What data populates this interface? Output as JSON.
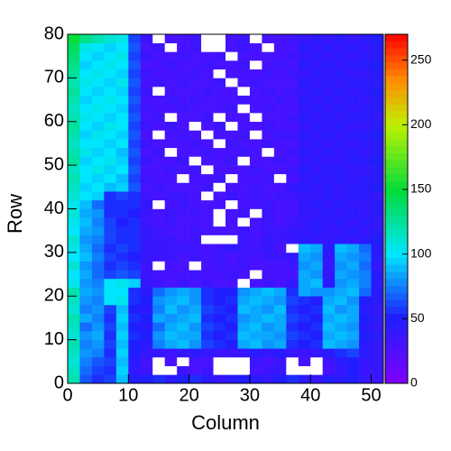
{
  "chart_data": {
    "type": "heatmap",
    "xlabel": "Column",
    "ylabel": "Row",
    "xlim": [
      0,
      52
    ],
    "ylim": [
      0,
      80
    ],
    "zlim": [
      0,
      270
    ],
    "xticks": [
      0,
      10,
      20,
      30,
      40,
      50
    ],
    "yticks": [
      0,
      10,
      20,
      30,
      40,
      50,
      60,
      70,
      80
    ],
    "zticks": [
      0,
      50,
      100,
      150,
      200,
      250
    ],
    "xbins": [
      0,
      2,
      4,
      6,
      8,
      10,
      12,
      14,
      16,
      18,
      20,
      22,
      24,
      26,
      28,
      30,
      32,
      34,
      36,
      38,
      40,
      42,
      44,
      46,
      48,
      50,
      52
    ],
    "ybins": [
      0,
      2,
      4,
      6,
      8,
      10,
      12,
      14,
      16,
      18,
      20,
      22,
      24,
      26,
      28,
      30,
      32,
      34,
      36,
      38,
      40,
      42,
      44,
      46,
      48,
      50,
      52,
      54,
      56,
      58,
      60,
      62,
      64,
      66,
      68,
      70,
      72,
      74,
      76,
      78,
      80
    ],
    "z": [
      [
        120,
        65,
        55,
        60,
        90,
        50,
        50,
        55,
        45,
        50,
        55,
        45,
        40,
        45,
        50,
        45,
        40,
        50,
        55,
        45,
        40,
        50,
        45,
        50,
        40,
        35
      ],
      [
        115,
        70,
        60,
        55,
        95,
        40,
        35,
        0,
        0,
        35,
        30,
        35,
        0,
        0,
        0,
        30,
        35,
        40,
        0,
        0,
        0,
        30,
        40,
        50,
        35,
        40
      ],
      [
        110,
        75,
        65,
        60,
        90,
        45,
        30,
        0,
        30,
        0,
        30,
        30,
        0,
        0,
        0,
        35,
        30,
        35,
        0,
        30,
        0,
        35,
        45,
        50,
        40,
        40
      ],
      [
        115,
        80,
        75,
        55,
        95,
        50,
        40,
        40,
        35,
        40,
        45,
        40,
        35,
        35,
        40,
        45,
        40,
        45,
        40,
        35,
        40,
        45,
        55,
        60,
        45,
        40
      ],
      [
        120,
        75,
        80,
        60,
        90,
        50,
        45,
        75,
        85,
        90,
        80,
        60,
        55,
        50,
        85,
        90,
        80,
        85,
        55,
        50,
        55,
        90,
        85,
        80,
        45,
        40
      ],
      [
        110,
        80,
        85,
        55,
        95,
        55,
        50,
        80,
        90,
        85,
        85,
        55,
        50,
        55,
        90,
        85,
        85,
        80,
        60,
        55,
        50,
        85,
        90,
        85,
        50,
        45
      ],
      [
        115,
        70,
        80,
        60,
        90,
        50,
        45,
        70,
        85,
        90,
        80,
        60,
        55,
        50,
        85,
        90,
        80,
        85,
        55,
        50,
        55,
        90,
        85,
        80,
        45,
        40
      ],
      [
        120,
        85,
        75,
        55,
        95,
        55,
        50,
        85,
        80,
        85,
        90,
        55,
        50,
        55,
        80,
        85,
        90,
        85,
        60,
        55,
        50,
        85,
        90,
        85,
        50,
        45
      ],
      [
        110,
        75,
        80,
        60,
        90,
        50,
        45,
        75,
        90,
        80,
        85,
        60,
        55,
        50,
        90,
        85,
        80,
        90,
        55,
        50,
        55,
        90,
        80,
        85,
        45,
        40
      ],
      [
        115,
        80,
        75,
        100,
        105,
        55,
        50,
        80,
        85,
        90,
        80,
        55,
        50,
        55,
        85,
        90,
        85,
        80,
        60,
        55,
        50,
        85,
        90,
        80,
        50,
        45
      ],
      [
        120,
        85,
        80,
        100,
        100,
        55,
        45,
        70,
        80,
        85,
        80,
        55,
        50,
        50,
        80,
        85,
        90,
        85,
        55,
        85,
        80,
        80,
        85,
        90,
        70,
        45
      ],
      [
        105,
        80,
        75,
        100,
        105,
        95,
        40,
        35,
        30,
        35,
        30,
        35,
        30,
        30,
        0,
        30,
        35,
        30,
        40,
        85,
        90,
        45,
        80,
        85,
        75,
        45
      ],
      [
        100,
        85,
        70,
        60,
        65,
        60,
        35,
        30,
        30,
        30,
        35,
        30,
        30,
        35,
        30,
        0,
        30,
        30,
        30,
        85,
        80,
        40,
        85,
        80,
        75,
        45
      ],
      [
        110,
        80,
        70,
        55,
        60,
        55,
        35,
        0,
        30,
        30,
        0,
        30,
        35,
        30,
        35,
        30,
        30,
        30,
        35,
        80,
        85,
        40,
        80,
        85,
        70,
        40
      ],
      [
        100,
        90,
        75,
        60,
        55,
        50,
        40,
        35,
        35,
        30,
        35,
        30,
        35,
        30,
        35,
        30,
        35,
        35,
        40,
        85,
        80,
        40,
        85,
        80,
        75,
        45
      ],
      [
        105,
        85,
        70,
        55,
        60,
        55,
        40,
        40,
        35,
        35,
        35,
        30,
        35,
        40,
        35,
        35,
        40,
        30,
        0,
        90,
        85,
        45,
        90,
        85,
        70,
        45
      ],
      [
        110,
        80,
        75,
        60,
        55,
        55,
        40,
        35,
        35,
        30,
        35,
        0,
        0,
        0,
        35,
        30,
        40,
        35,
        40,
        45,
        40,
        40,
        45,
        40,
        45,
        50
      ],
      [
        100,
        85,
        80,
        60,
        55,
        55,
        40,
        35,
        30,
        30,
        35,
        30,
        30,
        30,
        35,
        30,
        35,
        35,
        40,
        40,
        45,
        40,
        40,
        45,
        40,
        45
      ],
      [
        105,
        90,
        75,
        60,
        50,
        55,
        35,
        30,
        35,
        30,
        30,
        30,
        0,
        30,
        0,
        30,
        35,
        30,
        35,
        40,
        45,
        40,
        45,
        40,
        45,
        40
      ],
      [
        110,
        85,
        80,
        55,
        55,
        50,
        35,
        30,
        35,
        30,
        35,
        30,
        0,
        30,
        35,
        0,
        35,
        30,
        30,
        40,
        40,
        45,
        40,
        45,
        40,
        45
      ],
      [
        105,
        90,
        70,
        55,
        55,
        55,
        40,
        0,
        30,
        35,
        30,
        30,
        30,
        0,
        30,
        30,
        35,
        30,
        30,
        40,
        45,
        40,
        45,
        40,
        40,
        45
      ],
      [
        110,
        100,
        95,
        55,
        60,
        55,
        35,
        30,
        35,
        35,
        30,
        0,
        30,
        35,
        30,
        35,
        30,
        35,
        35,
        40,
        40,
        45,
        40,
        45,
        45,
        40
      ],
      [
        115,
        95,
        100,
        90,
        95,
        65,
        30,
        35,
        30,
        30,
        30,
        35,
        0,
        30,
        30,
        35,
        30,
        30,
        40,
        45,
        40,
        45,
        40,
        45,
        45,
        50
      ],
      [
        120,
        100,
        95,
        100,
        90,
        60,
        35,
        30,
        30,
        0,
        30,
        30,
        35,
        0,
        30,
        30,
        35,
        0,
        30,
        40,
        45,
        40,
        45,
        40,
        45,
        45
      ],
      [
        115,
        100,
        105,
        95,
        100,
        65,
        30,
        30,
        35,
        30,
        35,
        0,
        30,
        30,
        30,
        35,
        30,
        30,
        35,
        45,
        40,
        45,
        45,
        40,
        40,
        45
      ],
      [
        125,
        95,
        100,
        105,
        95,
        60,
        35,
        30,
        30,
        35,
        0,
        30,
        30,
        35,
        0,
        30,
        30,
        35,
        30,
        40,
        45,
        40,
        40,
        45,
        45,
        50
      ],
      [
        120,
        105,
        95,
        100,
        90,
        65,
        30,
        35,
        0,
        30,
        30,
        35,
        30,
        30,
        35,
        30,
        0,
        30,
        35,
        45,
        40,
        45,
        40,
        45,
        40,
        45
      ],
      [
        115,
        100,
        100,
        95,
        100,
        60,
        35,
        30,
        30,
        30,
        35,
        30,
        0,
        35,
        30,
        30,
        35,
        30,
        30,
        40,
        45,
        40,
        45,
        40,
        45,
        45
      ],
      [
        120,
        95,
        105,
        100,
        95,
        65,
        30,
        0,
        30,
        35,
        30,
        0,
        30,
        30,
        35,
        0,
        30,
        35,
        35,
        45,
        40,
        45,
        40,
        45,
        45,
        50
      ],
      [
        125,
        100,
        95,
        105,
        100,
        60,
        35,
        30,
        35,
        30,
        0,
        30,
        35,
        0,
        30,
        30,
        35,
        30,
        30,
        40,
        45,
        40,
        45,
        40,
        40,
        45
      ],
      [
        120,
        105,
        100,
        95,
        100,
        65,
        30,
        35,
        0,
        30,
        30,
        35,
        0,
        30,
        30,
        0,
        30,
        30,
        35,
        45,
        40,
        45,
        40,
        45,
        45,
        40
      ],
      [
        115,
        100,
        105,
        100,
        95,
        60,
        35,
        30,
        30,
        35,
        30,
        30,
        30,
        35,
        0,
        30,
        35,
        30,
        30,
        40,
        45,
        40,
        45,
        40,
        45,
        45
      ],
      [
        120,
        95,
        100,
        105,
        100,
        65,
        30,
        30,
        35,
        30,
        35,
        30,
        30,
        30,
        35,
        30,
        30,
        35,
        30,
        45,
        40,
        45,
        40,
        45,
        40,
        45
      ],
      [
        125,
        100,
        95,
        100,
        95,
        60,
        35,
        0,
        30,
        30,
        30,
        35,
        30,
        30,
        0,
        30,
        35,
        30,
        35,
        40,
        45,
        40,
        45,
        40,
        45,
        50
      ],
      [
        120,
        105,
        100,
        95,
        105,
        65,
        30,
        35,
        30,
        35,
        30,
        30,
        35,
        0,
        30,
        35,
        30,
        30,
        30,
        45,
        40,
        45,
        40,
        45,
        45,
        45
      ],
      [
        125,
        100,
        105,
        100,
        95,
        60,
        35,
        30,
        30,
        30,
        35,
        30,
        0,
        30,
        30,
        30,
        35,
        30,
        35,
        40,
        45,
        40,
        45,
        40,
        40,
        45
      ],
      [
        130,
        95,
        100,
        105,
        100,
        65,
        30,
        30,
        35,
        30,
        30,
        35,
        30,
        30,
        35,
        0,
        30,
        35,
        30,
        45,
        40,
        45,
        40,
        45,
        45,
        50
      ],
      [
        135,
        100,
        95,
        100,
        105,
        60,
        35,
        30,
        30,
        35,
        30,
        30,
        35,
        0,
        30,
        30,
        30,
        30,
        35,
        40,
        45,
        40,
        45,
        40,
        45,
        45
      ],
      [
        140,
        105,
        100,
        95,
        100,
        65,
        30,
        35,
        0,
        30,
        35,
        0,
        0,
        30,
        35,
        30,
        0,
        30,
        30,
        45,
        40,
        45,
        40,
        45,
        40,
        45
      ],
      [
        150,
        130,
        120,
        110,
        105,
        60,
        35,
        0,
        30,
        30,
        35,
        0,
        0,
        30,
        35,
        0,
        30,
        30,
        35,
        40,
        45,
        40,
        45,
        40,
        45,
        50
      ]
    ]
  }
}
